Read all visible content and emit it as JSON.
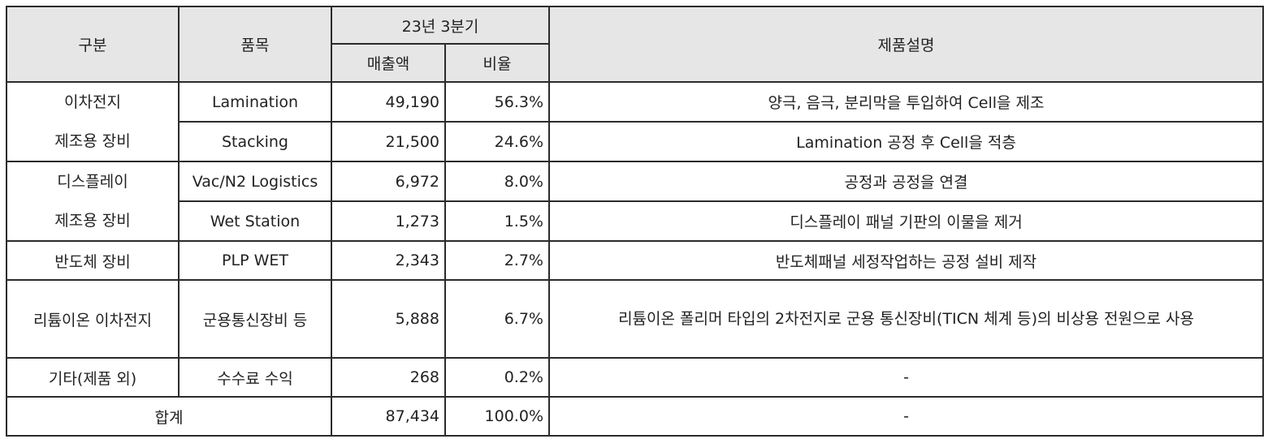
{
  "header": {
    "category": "구분",
    "item": "품목",
    "period": "23년 3분기",
    "sales": "매출액",
    "ratio": "비율",
    "description": "제품설명"
  },
  "groups": [
    {
      "category_lines": [
        "이차전지",
        "제조용 장비"
      ],
      "rows": [
        {
          "item": "Lamination",
          "sales": "49,190",
          "ratio": "56.3%",
          "description": "양극, 음극, 분리막을 투입하여 Cell을 제조"
        },
        {
          "item": "Stacking",
          "sales": "21,500",
          "ratio": "24.6%",
          "description": "Lamination 공정 후 Cell을 적층"
        }
      ]
    },
    {
      "category_lines": [
        "디스플레이",
        "제조용 장비"
      ],
      "rows": [
        {
          "item": "Vac/N2 Logistics",
          "sales": "6,972",
          "ratio": "8.0%",
          "description": "공정과 공정을 연결"
        },
        {
          "item": "Wet Station",
          "sales": "1,273",
          "ratio": "1.5%",
          "description": "디스플레이 패널 기판의 이물을 제거"
        }
      ]
    },
    {
      "category": "반도체 장비",
      "row": {
        "item": "PLP WET",
        "sales": "2,343",
        "ratio": "2.7%",
        "description": "반도체패널 세정작업하는 공정 설비 제작"
      }
    },
    {
      "category": "리튬이온 이차전지",
      "row": {
        "item": "군용통신장비 등",
        "sales": "5,888",
        "ratio": "6.7%",
        "description": "리튬이온 폴리머 타입의 2차전지로 군용 통신장비(TICN 체계 등)의 비상용 전원으로 사용"
      }
    },
    {
      "category": "기타(제품 외)",
      "row": {
        "item": "수수료 수익",
        "sales": "268",
        "ratio": "0.2%",
        "description": "-"
      }
    }
  ],
  "total": {
    "label": "합계",
    "sales": "87,434",
    "ratio": "100.0%",
    "description": "-"
  }
}
